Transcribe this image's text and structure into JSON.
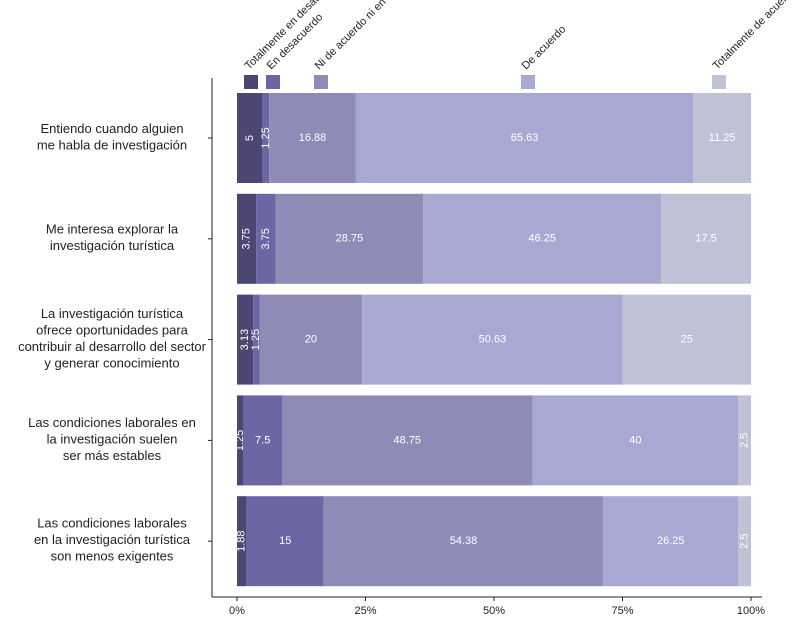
{
  "chart_data": {
    "type": "stacked-bar-horizontal",
    "categories": [
      [
        "Entiendo cuando alguien",
        "me habla de investigación"
      ],
      [
        "Me interesa explorar la",
        "investigación turística"
      ],
      [
        "La investigación turística",
        "ofrece oportunidades para",
        "contribuir al desarrollo del sector",
        "y generar conocimiento"
      ],
      [
        "Las condiciones laborales en",
        "la investigación suelen",
        "ser más estables"
      ],
      [
        "Las condiciones laborales",
        "en la investigación turística",
        "son menos exigentes"
      ]
    ],
    "series": [
      {
        "name": "Totalmente en desacuerdo",
        "color": "#4b4772",
        "values": [
          5,
          3.75,
          3.13,
          1.25,
          1.88
        ]
      },
      {
        "name": "En desacuerdo",
        "color": "#6c67a4",
        "values": [
          1.25,
          3.75,
          1.25,
          7.5,
          15
        ]
      },
      {
        "name": "Ni de acuerdo ni en desacuerdo",
        "color": "#8e8cb6",
        "values": [
          16.88,
          28.75,
          20,
          48.75,
          54.38
        ]
      },
      {
        "name": "De acuerdo",
        "color": "#a8a9d3",
        "values": [
          65.63,
          46.25,
          50.63,
          40,
          26.25
        ]
      },
      {
        "name": "Totalmente de acuerdo",
        "color": "#bfc1d6",
        "values": [
          11.25,
          17.5,
          25,
          2.5,
          2.5
        ]
      }
    ],
    "xlim": [
      0,
      100
    ],
    "xticks": [
      {
        "value": 0,
        "label": "0%"
      },
      {
        "value": 25,
        "label": "25%"
      },
      {
        "value": 50,
        "label": "50%"
      },
      {
        "value": 75,
        "label": "75%"
      },
      {
        "value": 100,
        "label": "100%"
      }
    ],
    "legend": "top"
  }
}
